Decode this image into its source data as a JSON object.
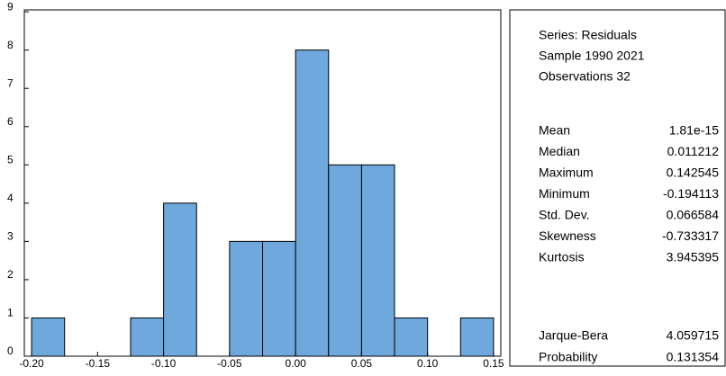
{
  "chart_data": {
    "type": "histogram",
    "bins": [
      -0.2,
      -0.175,
      -0.15,
      -0.125,
      -0.1,
      -0.075,
      -0.05,
      -0.025,
      0,
      0.025,
      0.05,
      0.075,
      0.1,
      0.125,
      0.15
    ],
    "values": [
      1,
      0,
      0,
      1,
      4,
      0,
      3,
      3,
      8,
      5,
      5,
      1,
      0,
      1
    ],
    "color": "#6fa8dc",
    "xlim": [
      -0.2055,
      0.1555
    ],
    "xticks": [
      {
        "value": -0.2,
        "label": "-0.20"
      },
      -0.15,
      {
        "value": -0.1,
        "label": "-0.10"
      },
      -0.05,
      {
        "value": 0,
        "label": "0.00"
      },
      0.05,
      {
        "value": 0.1,
        "label": "0.10"
      },
      0.15
    ],
    "ylim": [
      0,
      9.05
    ],
    "yticks": [
      0,
      1,
      2,
      3,
      4,
      5,
      6,
      7,
      8,
      9
    ]
  },
  "stats": {
    "header": [
      "Series: Residuals",
      "Sample 1990 2021",
      "Observations 32"
    ],
    "rows": [
      [
        "Mean",
        "1.81e-15"
      ],
      [
        "Median",
        "0.011212"
      ],
      [
        "Maximum",
        "0.142545"
      ],
      [
        "Minimum",
        "-0.194113"
      ],
      [
        "Std. Dev.",
        "0.066584"
      ],
      [
        "Skewness",
        "-0.733317"
      ],
      [
        "Kurtosis",
        "3.945395"
      ]
    ],
    "tests": [
      [
        "Jarque-Bera",
        "4.059715"
      ],
      [
        "Probability",
        "0.131354"
      ]
    ]
  }
}
